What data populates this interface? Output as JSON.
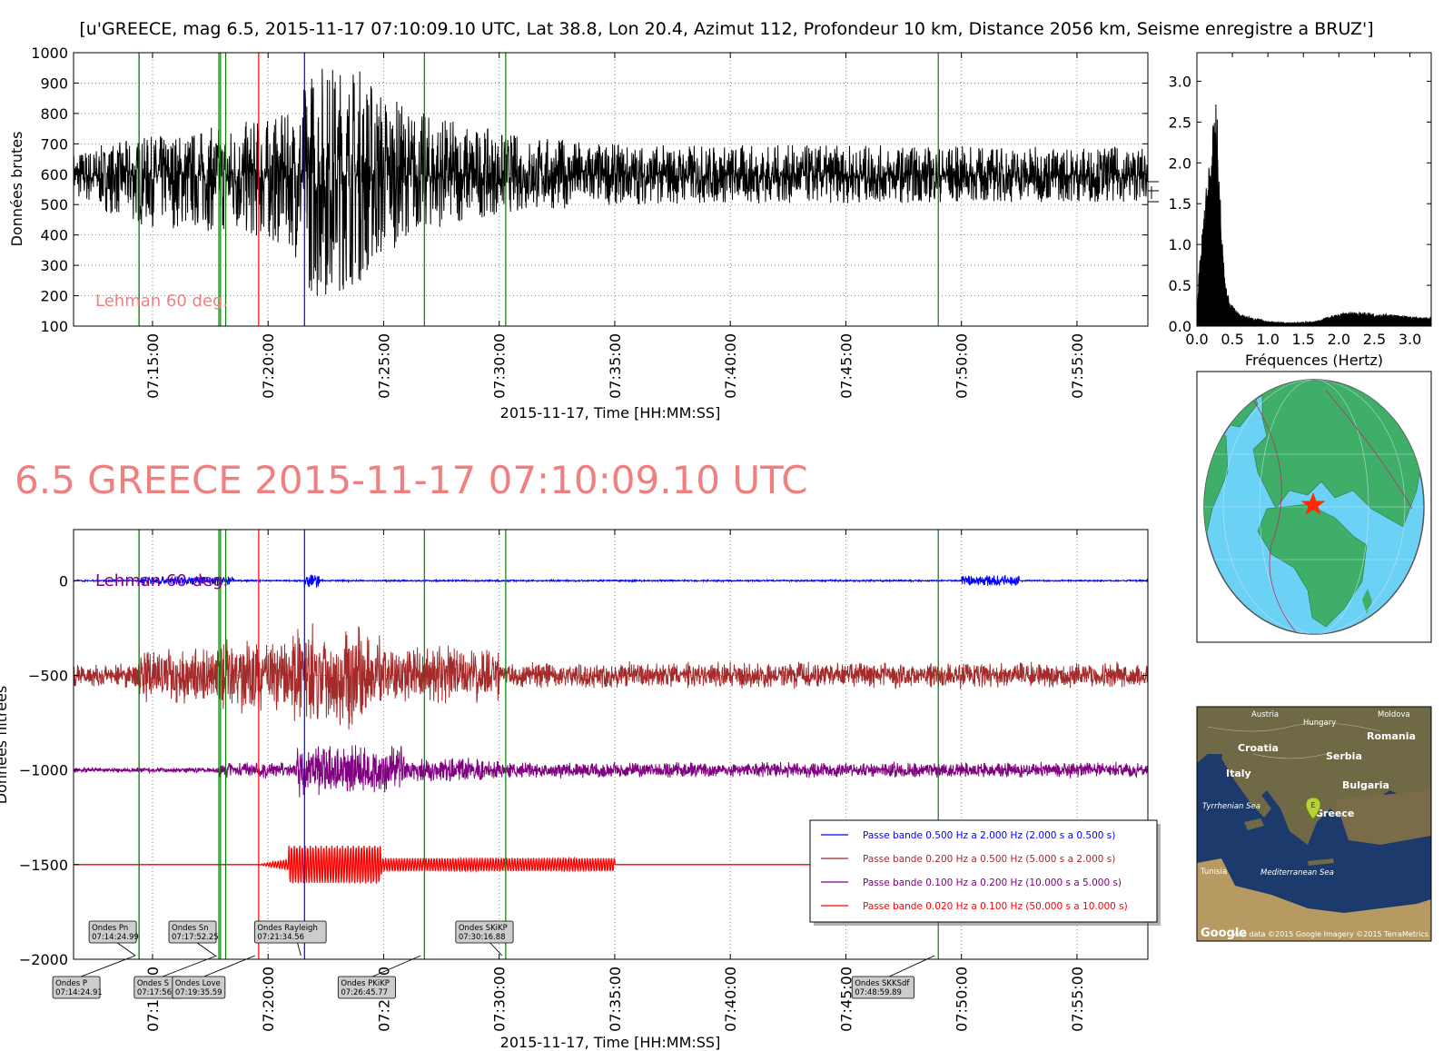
{
  "figure_title": "[u'GREECE, mag 6.5, 2015-11-17 07:10:09.10 UTC, Lat 38.8, Lon 20.4, Azimut 112, Profondeur 10 km, Distance 2056 km, Seisme enregistre a BRUZ']",
  "big_title": "6.5 GREECE 2015-11-17 07:10:09.10 UTC",
  "colors": {
    "raw": "#000000",
    "band1": "#0000ff",
    "band2": "#a52a2a",
    "band3": "#800080",
    "band4": "#ff0000",
    "phase_line": "#008000",
    "rayleigh_line": "#ff0000",
    "skikp_line": "#0000ff",
    "lehman": "#f08080",
    "title2": "#f08080",
    "ocean": "#6cd2f5",
    "land": "#3fae69",
    "sat_sea": "#1c3a6b",
    "sat_land": "#6f6a45"
  },
  "chart_data": [
    {
      "id": "raw",
      "type": "line",
      "ylabel": "Données brutes",
      "xlabel": "2015-11-17, Time [HH:MM:SS]",
      "xlim": [
        "07:11:35",
        "07:58:04"
      ],
      "ylim": [
        100,
        1000
      ],
      "yticks": [
        100,
        200,
        300,
        400,
        500,
        600,
        700,
        800,
        900,
        1000
      ],
      "xticks": [
        "07:15:00",
        "07:20:00",
        "07:25:00",
        "07:30:00",
        "07:35:00",
        "07:40:00",
        "07:45:00",
        "07:50:00",
        "07:55:00"
      ],
      "grid": true,
      "annotation": "Lehman 60 deg.",
      "signal_baseline": 595,
      "signal_envelope_approx": [
        {
          "time": "07:11:35",
          "min": 520,
          "max": 680
        },
        {
          "time": "07:14:30",
          "min": 430,
          "max": 720
        },
        {
          "time": "07:17:50",
          "min": 410,
          "max": 760
        },
        {
          "time": "07:21:00",
          "min": 360,
          "max": 800
        },
        {
          "time": "07:22:00",
          "min": 180,
          "max": 990
        },
        {
          "time": "07:24:00",
          "min": 240,
          "max": 960
        },
        {
          "time": "07:26:00",
          "min": 400,
          "max": 820
        },
        {
          "time": "07:30:00",
          "min": 470,
          "max": 740
        },
        {
          "time": "07:35:00",
          "min": 500,
          "max": 700
        },
        {
          "time": "07:58:04",
          "min": 510,
          "max": 690
        }
      ]
    },
    {
      "id": "spectrum",
      "type": "area",
      "xlabel": "Fréquences (Hertz)",
      "xlim": [
        0,
        3.3
      ],
      "ylim": [
        0,
        3.35
      ],
      "xticks": [
        "0.0",
        "0.5",
        "1.0",
        "1.5",
        "2.0",
        "2.5",
        "3.0"
      ],
      "yticks": [
        "0.0",
        "0.5",
        "1.0",
        "1.5",
        "2.0",
        "2.5",
        "3.0"
      ],
      "x": [
        0.0,
        0.05,
        0.1,
        0.15,
        0.2,
        0.25,
        0.28,
        0.3,
        0.35,
        0.4,
        0.5,
        0.6,
        0.8,
        1.0,
        1.3,
        1.6,
        1.8,
        2.0,
        2.2,
        2.5,
        2.8,
        3.0,
        3.3
      ],
      "y": [
        0.3,
        0.9,
        1.4,
        1.9,
        2.3,
        2.6,
        2.8,
        2.1,
        1.2,
        0.5,
        0.25,
        0.15,
        0.1,
        0.06,
        0.04,
        0.05,
        0.1,
        0.15,
        0.18,
        0.16,
        0.14,
        0.12,
        0.1
      ]
    },
    {
      "id": "filtered",
      "type": "line",
      "ylabel": "Données filtrées",
      "xlabel": "2015-11-17, Time [HH:MM:SS]",
      "xlim": [
        "07:11:35",
        "07:58:04"
      ],
      "ylim": [
        -2000,
        270
      ],
      "yticks": [
        0,
        -500,
        -1000,
        -1500,
        -2000
      ],
      "xticks": [
        "07:15:00",
        "07:20:00",
        "07:25:00",
        "07:30:00",
        "07:35:00",
        "07:40:00",
        "07:45:00",
        "07:50:00",
        "07:55:00"
      ],
      "grid": true,
      "annotation": "Lehman 60 deg.",
      "series": [
        {
          "name": "Passe bande 0.500 Hz a 2.000 Hz (2.000 s a 0.500 s)",
          "offset": 0,
          "color": "#0000ff",
          "amplitude_approx": 20
        },
        {
          "name": "Passe bande 0.200 Hz a 0.500 Hz (5.000 s a 2.000 s)",
          "offset": -500,
          "color": "#a52a2a",
          "amplitude_approx": 300
        },
        {
          "name": "Passe bande 0.100 Hz a 0.200 Hz (10.000 s a 5.000 s)",
          "offset": -1000,
          "color": "#800080",
          "amplitude_approx": 150
        },
        {
          "name": "Passe bande 0.020 Hz a 0.100 Hz (50.000 s a 10.000 s)",
          "offset": -1500,
          "color": "#ff0000",
          "amplitude_approx": 100
        }
      ]
    }
  ],
  "phase_lines": [
    {
      "time": "07:14:24.99",
      "color": "#008000"
    },
    {
      "time": "07:14:24.91",
      "color": "#008000"
    },
    {
      "time": "07:17:52.25",
      "color": "#008000"
    },
    {
      "time": "07:17:56.52",
      "color": "#008000"
    },
    {
      "time": "07:18:10",
      "color": "#008000"
    },
    {
      "time": "07:19:35.59",
      "color": "#ff0000"
    },
    {
      "time": "07:21:34.56",
      "color": "#0000ff"
    },
    {
      "time": "07:26:45.77",
      "color": "#008000"
    },
    {
      "time": "07:30:16.88",
      "color": "#008000"
    },
    {
      "time": "07:48:59.89",
      "color": "#008000"
    }
  ],
  "phase_labels_top": [
    {
      "name": "Ondes Pn",
      "time": "07:14:24.99"
    },
    {
      "name": "Ondes Sn",
      "time": "07:17:52.25"
    },
    {
      "name": "Ondes Rayleigh",
      "time": "07:21:34.56"
    },
    {
      "name": "Ondes SKiKP",
      "time": "07:30:16.88"
    }
  ],
  "phase_labels_bottom": [
    {
      "name": "Ondes P",
      "time": "07:14:24.91"
    },
    {
      "name": "Ondes S",
      "time": "07:17:56.52"
    },
    {
      "name": "Ondes Love",
      "time": "07:19:35.59"
    },
    {
      "name": "Ondes PKiKP",
      "time": "07:26:45.77"
    },
    {
      "name": "Ondes SKKSdf",
      "time": "07:48:59.89"
    }
  ],
  "globe_map": {
    "star": "epicenter"
  },
  "sat_map": {
    "labels": [
      "Austria",
      "Hungary",
      "Moldova",
      "Croatia",
      "Romania",
      "Serbia",
      "Italy",
      "Bulgaria",
      "Tyrrhenian Sea",
      "Greece",
      "Tunisia",
      "Mediterranean Sea"
    ],
    "attribution": "Map data ©2015 Google  Imagery ©2015 TerraMetrics",
    "logo": "Google",
    "marker": "E"
  }
}
